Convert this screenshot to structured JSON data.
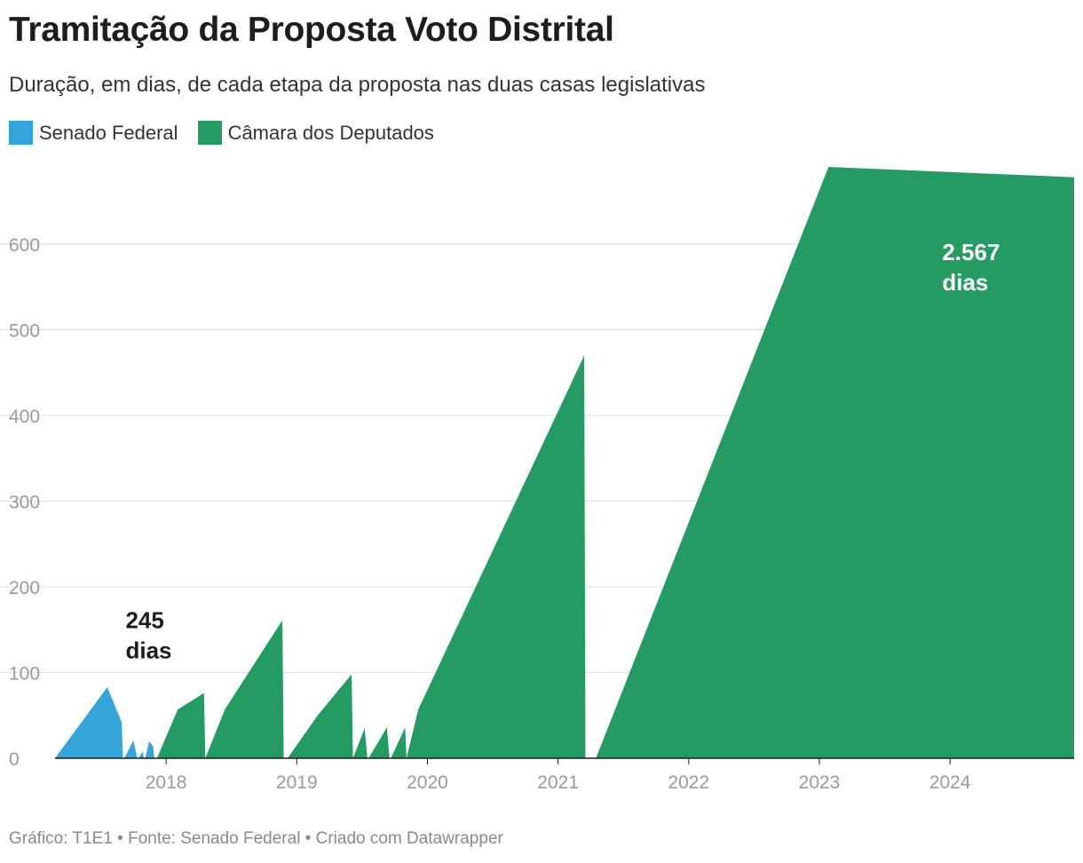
{
  "title": "Tramitação da Proposta Voto Distrital",
  "subtitle": "Duração, em dias, de cada etapa da proposta nas duas casas legislativas",
  "legend": [
    {
      "label": "Senado Federal",
      "color": "#36a4d6"
    },
    {
      "label": "Câmara dos Deputados",
      "color": "#259a62"
    }
  ],
  "footer": "Gráfico: T1E1 • Fonte: Senado Federal • Criado com Datawrapper",
  "chart_data": {
    "type": "area",
    "title": "Tramitação da Proposta Voto Distrital",
    "subtitle": "Duração, em dias, de cada etapa da proposta nas duas casas legislativas",
    "xlabel": "",
    "ylabel": "",
    "y_ticks": [
      0,
      100,
      200,
      300,
      400,
      500,
      600
    ],
    "x_ticks": [
      2018,
      2019,
      2020,
      2021,
      2022,
      2023,
      2024
    ],
    "xlim": [
      2017.15,
      2024.95
    ],
    "ylim": [
      0,
      690
    ],
    "grid": true,
    "legend_position": "top-left",
    "series": [
      {
        "name": "Senado Federal",
        "color": "#36a4d6",
        "segments": [
          [
            [
              2017.15,
              0
            ],
            [
              2017.55,
              83
            ],
            [
              2017.66,
              42
            ],
            [
              2017.67,
              0
            ]
          ],
          [
            [
              2017.68,
              0
            ],
            [
              2017.75,
              21
            ],
            [
              2017.78,
              0
            ]
          ],
          [
            [
              2017.79,
              0
            ],
            [
              2017.82,
              8
            ],
            [
              2017.83,
              0
            ]
          ],
          [
            [
              2017.84,
              0
            ],
            [
              2017.87,
              20
            ],
            [
              2017.9,
              14
            ],
            [
              2017.91,
              0
            ]
          ]
        ]
      },
      {
        "name": "Câmara dos Deputados",
        "color": "#259a62",
        "segments": [
          [
            [
              2017.93,
              0
            ],
            [
              2018.09,
              57
            ],
            [
              2018.29,
              76
            ],
            [
              2018.3,
              0
            ]
          ],
          [
            [
              2018.3,
              0
            ],
            [
              2018.45,
              57
            ],
            [
              2018.89,
              161
            ],
            [
              2018.9,
              0
            ]
          ],
          [
            [
              2018.93,
              0
            ],
            [
              2019.16,
              50
            ],
            [
              2019.42,
              98
            ],
            [
              2019.43,
              0
            ]
          ],
          [
            [
              2019.43,
              0
            ],
            [
              2019.52,
              35
            ],
            [
              2019.54,
              0
            ]
          ],
          [
            [
              2019.55,
              0
            ],
            [
              2019.69,
              36
            ],
            [
              2019.71,
              0
            ]
          ],
          [
            [
              2019.72,
              0
            ],
            [
              2019.83,
              36
            ],
            [
              2019.84,
              0
            ]
          ],
          [
            [
              2019.84,
              0
            ],
            [
              2019.93,
              57
            ],
            [
              2021.2,
              470
            ],
            [
              2021.21,
              0
            ]
          ],
          [
            [
              2021.29,
              0
            ],
            [
              2023.07,
              690
            ],
            [
              2024.95,
              678
            ],
            [
              2024.95,
              0
            ]
          ]
        ]
      }
    ],
    "annotations": [
      {
        "text": [
          "245",
          "dias"
        ],
        "x": 2017.69,
        "y": 152,
        "color": "#1d1d1d"
      },
      {
        "text": [
          "2.567",
          "dias"
        ],
        "x": 2023.94,
        "y": 581,
        "color": "#ffffff"
      }
    ]
  }
}
